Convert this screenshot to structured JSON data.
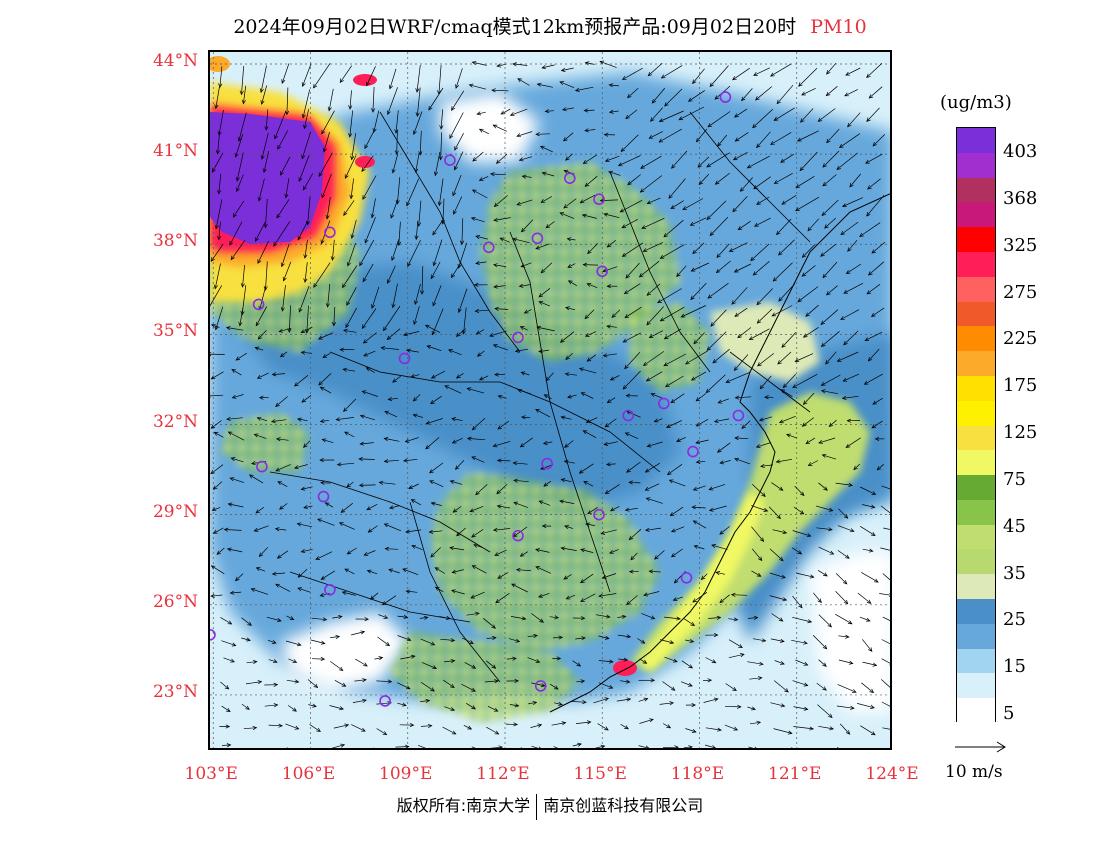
{
  "title": {
    "main": "2024年09月02日WRF/cmaq模式12km预报产品:09月02日20时",
    "pollutant": "PM10"
  },
  "map": {
    "lat_labels": [
      "44°N",
      "41°N",
      "38°N",
      "35°N",
      "32°N",
      "29°N",
      "26°N",
      "23°N"
    ],
    "lon_labels": [
      "103°E",
      "106°E",
      "109°E",
      "112°E",
      "115°E",
      "118°E",
      "121°E",
      "124°E"
    ],
    "extent": {
      "lon_min": 102.9,
      "lon_max": 124.0,
      "lat_min": 21.1,
      "lat_max": 44.4
    },
    "stations": [
      [
        118.8,
        42.9
      ],
      [
        110.3,
        40.8
      ],
      [
        114.0,
        40.2
      ],
      [
        114.9,
        39.5
      ],
      [
        106.6,
        38.4
      ],
      [
        111.5,
        37.9
      ],
      [
        113.0,
        38.2
      ],
      [
        115.0,
        37.1
      ],
      [
        104.4,
        36.0
      ],
      [
        112.4,
        34.9
      ],
      [
        108.9,
        34.2
      ],
      [
        116.9,
        32.7
      ],
      [
        115.8,
        32.3
      ],
      [
        119.2,
        32.3
      ],
      [
        117.8,
        31.1
      ],
      [
        104.5,
        30.6
      ],
      [
        113.3,
        30.7
      ],
      [
        106.4,
        29.6
      ],
      [
        114.9,
        29.0
      ],
      [
        112.4,
        28.3
      ],
      [
        106.6,
        26.5
      ],
      [
        102.9,
        25.0
      ],
      [
        117.6,
        26.9
      ],
      [
        108.3,
        22.8
      ],
      [
        113.1,
        23.3
      ]
    ],
    "colors": {
      "coast_sea": "#4d8fd0",
      "station_marker": "#8a2be2",
      "dust_core": "#7b2fd9"
    }
  },
  "legend": {
    "unit": "(ug/m3)",
    "levels": [
      "403",
      "368",
      "325",
      "275",
      "225",
      "175",
      "125",
      "75",
      "45",
      "35",
      "25",
      "15",
      "5"
    ],
    "colors": [
      "#7b2fd9",
      "#a12fd0",
      "#b03060",
      "#c8187a",
      "#ff0000",
      "#ff1e58",
      "#ff6060",
      "#f05a28",
      "#ff8c00",
      "#fbaa2a",
      "#ffe000",
      "#fff000",
      "#f8e040",
      "#f0f864",
      "#66aa33",
      "#88c34a",
      "#c0dd70",
      "#b8d870",
      "#dee9b8",
      "#4a8fc8",
      "#66a8dc",
      "#a0d4f0",
      "#d8f0fa",
      "#ffffff"
    ],
    "wind_scale": "10 m/s"
  },
  "footer": {
    "left": "版权所有:南京大学",
    "right": "南京创蓝科技有限公司"
  }
}
